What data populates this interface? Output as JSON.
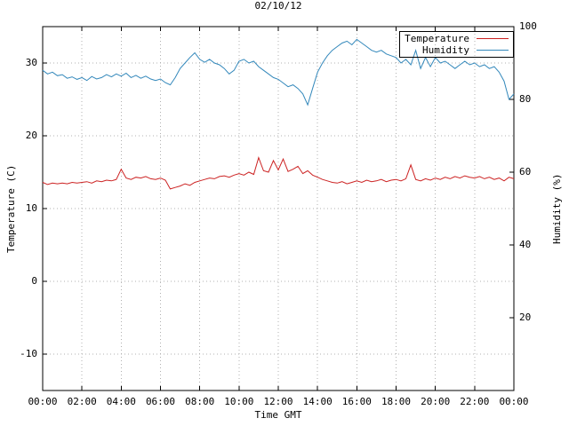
{
  "chart": {
    "title": "02/10/12",
    "xlabel": "Time GMT",
    "ylabel_left": "Temperature (C)",
    "ylabel_right": "Humidity (%)"
  },
  "legend": {
    "items": [
      {
        "label": "Temperature"
      },
      {
        "label": "Humidity"
      }
    ]
  },
  "chart_data": {
    "type": "line",
    "title": "02/10/12",
    "xlabel": "Time GMT",
    "grid": true,
    "legend_position": "top-right-boxed",
    "x_unit": "minutes after midnight GMT",
    "sample_interval_minutes": 15,
    "x_ticks": [
      {
        "m": 0,
        "label": "00:00"
      },
      {
        "m": 120,
        "label": "02:00"
      },
      {
        "m": 240,
        "label": "04:00"
      },
      {
        "m": 360,
        "label": "06:00"
      },
      {
        "m": 480,
        "label": "08:00"
      },
      {
        "m": 600,
        "label": "10:00"
      },
      {
        "m": 720,
        "label": "12:00"
      },
      {
        "m": 840,
        "label": "14:00"
      },
      {
        "m": 960,
        "label": "16:00"
      },
      {
        "m": 1080,
        "label": "18:00"
      },
      {
        "m": 1200,
        "label": "20:00"
      },
      {
        "m": 1320,
        "label": "22:00"
      },
      {
        "m": 1440,
        "label": "00:00"
      }
    ],
    "axes": {
      "left": {
        "label": "Temperature (C)",
        "range": [
          -15,
          35
        ],
        "ticks": [
          {
            "v": -10,
            "label": "-10"
          },
          {
            "v": 0,
            "label": "0"
          },
          {
            "v": 10,
            "label": "10"
          },
          {
            "v": 20,
            "label": "20"
          },
          {
            "v": 30,
            "label": "30"
          }
        ]
      },
      "right": {
        "label": "Humidity (%)",
        "range": [
          0,
          100
        ],
        "ticks": [
          {
            "v": 20,
            "label": "20"
          },
          {
            "v": 40,
            "label": "40"
          },
          {
            "v": 60,
            "label": "60"
          },
          {
            "v": 80,
            "label": "80"
          },
          {
            "v": 100,
            "label": "100"
          }
        ]
      }
    },
    "colors": {
      "temperature": "#cc2222",
      "humidity": "#3388bb",
      "grid": "#b0b0b0",
      "border": "#000000"
    },
    "series": [
      {
        "name": "Temperature",
        "axis": "left",
        "color": "#cc2222",
        "values": [
          13.6,
          13.3,
          13.5,
          13.4,
          13.5,
          13.4,
          13.6,
          13.5,
          13.6,
          13.7,
          13.5,
          13.8,
          13.7,
          13.9,
          13.8,
          14.0,
          15.4,
          14.2,
          14.0,
          14.3,
          14.2,
          14.4,
          14.1,
          14.0,
          14.2,
          13.9,
          12.7,
          12.9,
          13.1,
          13.4,
          13.2,
          13.6,
          13.8,
          14.0,
          14.2,
          14.1,
          14.4,
          14.5,
          14.3,
          14.6,
          14.8,
          14.6,
          15.0,
          14.7,
          17.0,
          15.2,
          15.0,
          16.6,
          15.3,
          16.8,
          15.1,
          15.4,
          15.8,
          14.8,
          15.2,
          14.6,
          14.3,
          14.0,
          13.8,
          13.6,
          13.5,
          13.7,
          13.4,
          13.6,
          13.8,
          13.6,
          13.9,
          13.7,
          13.8,
          14.0,
          13.7,
          13.9,
          14.0,
          13.8,
          14.1,
          16.0,
          14.0,
          13.8,
          14.1,
          13.9,
          14.2,
          14.0,
          14.3,
          14.1,
          14.4,
          14.2,
          14.5,
          14.3,
          14.2,
          14.4,
          14.1,
          14.3,
          14.0,
          14.2,
          13.8,
          14.3,
          14.1
        ]
      },
      {
        "name": "Humidity",
        "axis": "right",
        "color": "#3388bb",
        "values": [
          88.0,
          87.0,
          87.5,
          86.5,
          86.8,
          85.8,
          86.2,
          85.5,
          86.0,
          85.2,
          86.3,
          85.6,
          86.0,
          86.8,
          86.2,
          87.0,
          86.4,
          87.2,
          86.0,
          86.6,
          85.8,
          86.4,
          85.6,
          85.2,
          85.6,
          84.6,
          84.0,
          86.0,
          88.5,
          90.0,
          91.5,
          92.8,
          91.0,
          90.2,
          91.0,
          90.0,
          89.5,
          88.5,
          87.0,
          88.0,
          90.5,
          91.0,
          90.0,
          90.5,
          89.0,
          88.0,
          87.0,
          86.0,
          85.5,
          84.5,
          83.5,
          84.0,
          83.0,
          81.5,
          78.5,
          83.0,
          87.5,
          90.0,
          92.0,
          93.5,
          94.5,
          95.5,
          96.0,
          95.0,
          96.5,
          95.5,
          94.5,
          93.5,
          93.0,
          93.5,
          92.5,
          92.0,
          91.5,
          90.0,
          91.0,
          89.5,
          93.5,
          88.5,
          91.5,
          89.0,
          91.5,
          90.0,
          90.5,
          89.5,
          88.5,
          89.5,
          90.5,
          89.5,
          90.0,
          89.0,
          89.5,
          88.5,
          89.0,
          87.5,
          85.0,
          80.0,
          81.5
        ]
      }
    ]
  }
}
